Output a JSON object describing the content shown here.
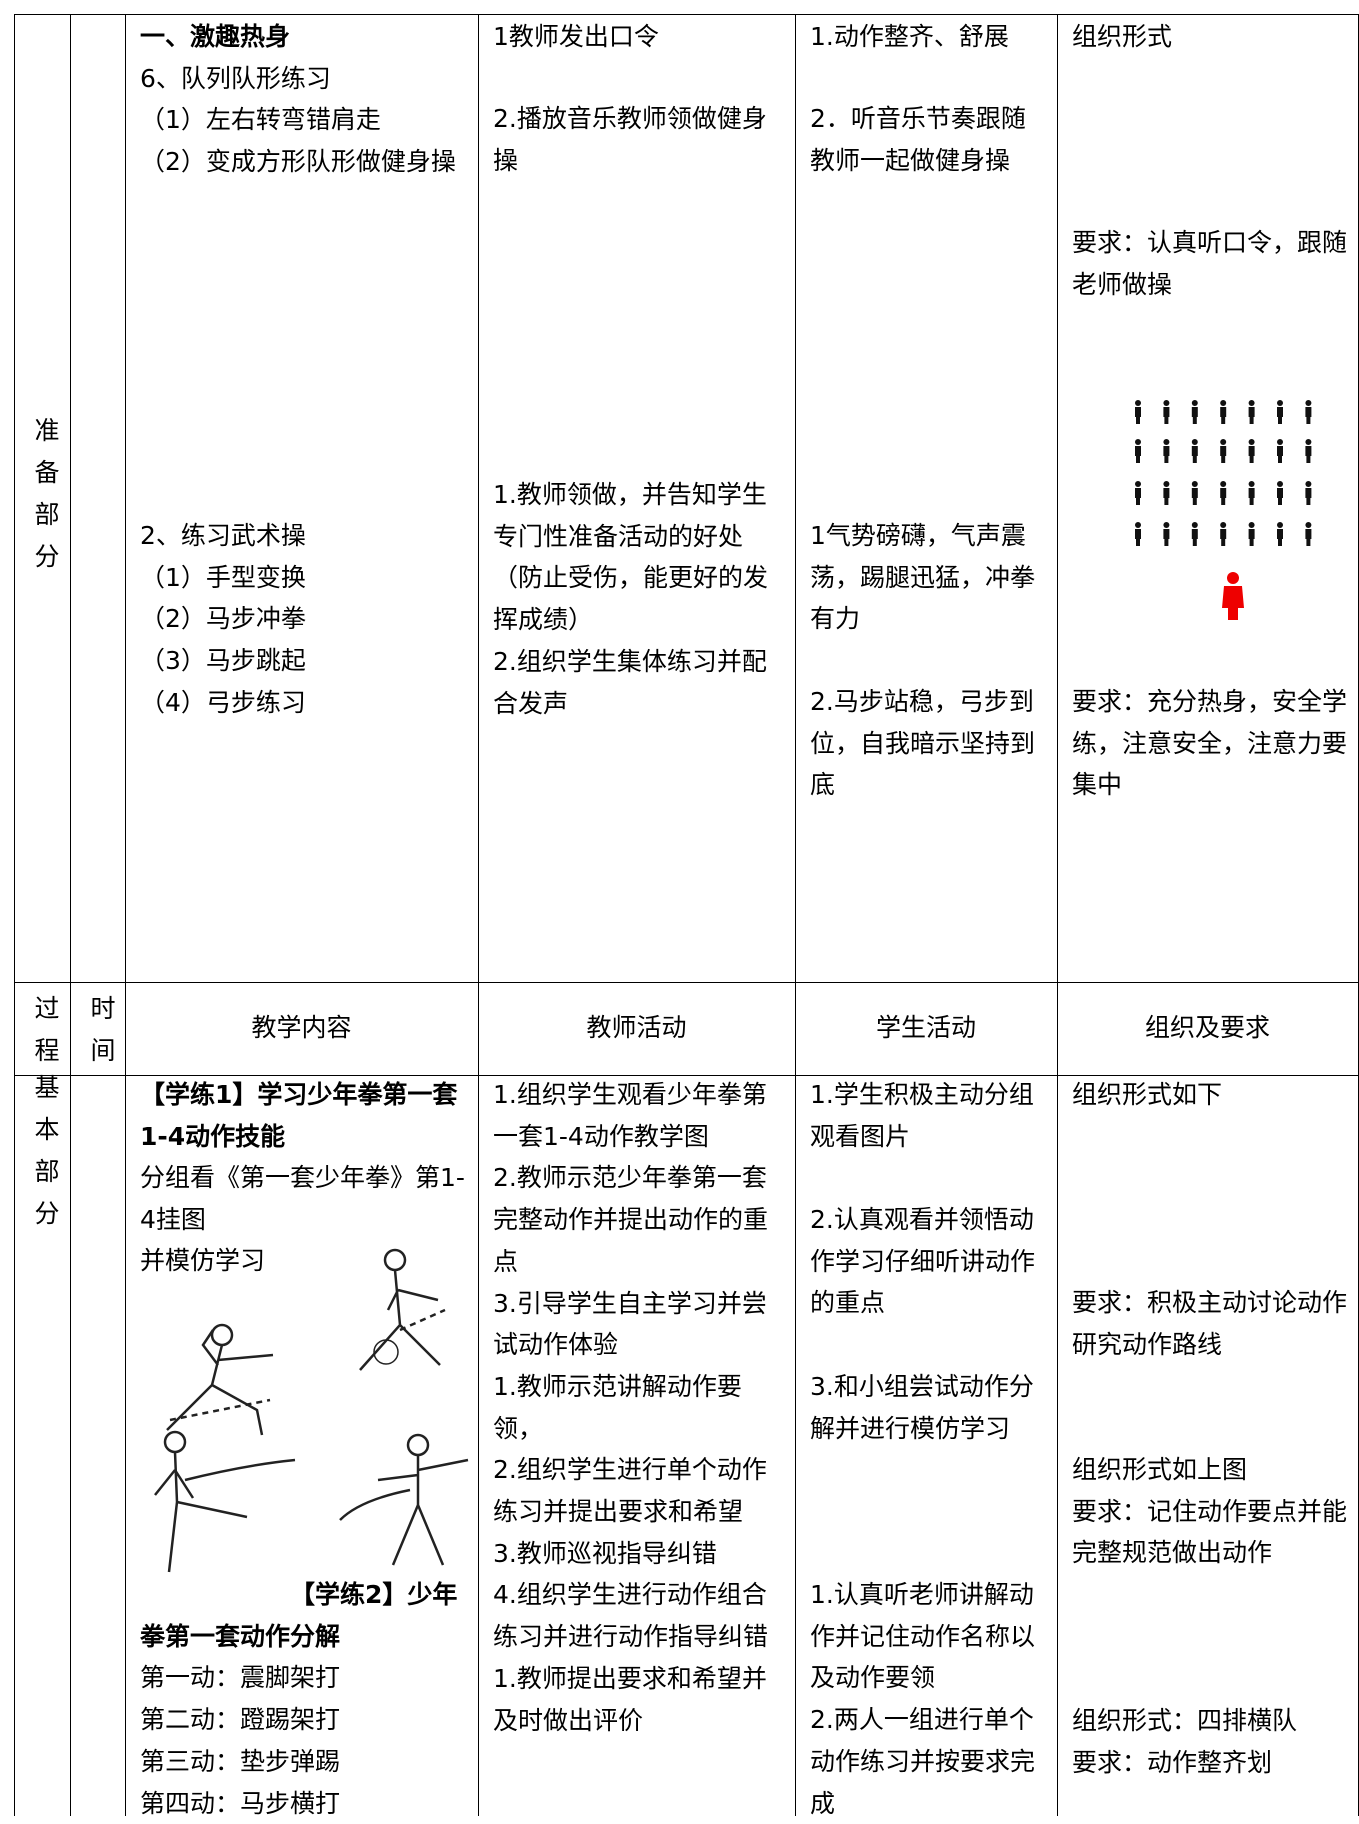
{
  "header": [
    "过程",
    "时间",
    "教学内容",
    "教师活动",
    "学生活动",
    "组织及要求"
  ],
  "sections": [
    {
      "process": "准备部分",
      "content": [
        [
          "一、激趣热身",
          "6、队列队形练习",
          "（1）左右转弯错肩走",
          "（2）变成方形队形做健身操"
        ],
        [
          "2、练习武术操",
          "（1）手型变换",
          "（2）马步冲拳",
          "（3）马步跳起",
          "（4）弓步练习"
        ]
      ],
      "teacher": [
        [
          "1教师发出口令"
        ],
        [
          "2.播放音乐教师领做健身操"
        ],
        [
          "1.教师领做，并告知学生专门性准备活动的好处（防止受伤，能更好的发挥成绩）",
          "2.组织学生集体练习并配合发声"
        ]
      ],
      "student": [
        [
          "1.动作整齐、舒展"
        ],
        [
          "2．听音乐节奏跟随教师一起做健身操"
        ],
        [
          "1气势磅礴，气声震荡，踢腿迅猛，冲拳有力"
        ],
        [
          "2.马步站稳，弓步到位，自我暗示坚持到底"
        ]
      ],
      "organization": [
        [
          "组织形式"
        ],
        [
          "要求：认真听口令，跟随老师做操"
        ],
        [
          "要求：充分热身，安全学练，注意安全，注意力要集中"
        ]
      ]
    },
    {
      "process": "基本部分",
      "content": [
        [
          "【学练1】学习少年拳第一套1-4动作技能"
        ],
        [
          "分组看《第一套少年拳》第1-4挂图",
          "并模仿学习"
        ],
        [
          "【学练2】少年拳第一套动作分解",
          "第一动：震脚架打",
          "第二动：蹬踢架打",
          "第三动：垫步弹踢",
          "第四动：马步横打"
        ]
      ],
      "teacher": [
        [
          "1.组织学生观看少年拳第一套1-4动作教学图",
          "2.教师示范少年拳第一套完整动作并提出动作的重点",
          "3.引导学生自主学习并尝试动作体验",
          "1.教师示范讲解动作要领，",
          "2.组织学生进行单个动作练习并提出要求和希望",
          "3.教师巡视指导纠错",
          "4.组织学生进行动作组合练习并进行动作指导纠错",
          "1.教师提出要求和希望并及时做出评价"
        ]
      ],
      "student": [
        [
          "1.学生积极主动分组观看图片"
        ],
        [
          "2.认真观看并领悟动作学习仔细听讲动作的重点"
        ],
        [
          "3.和小组尝试动作分解并进行模仿学习"
        ],
        [
          "1.认真听老师讲解动作并记住动作名称以及动作要领",
          "2.两人一组进行单个动作练习并按要求完成"
        ]
      ],
      "organization": [
        [
          "组织形式如下"
        ],
        [
          "要求：积极主动讨论动作研究动作路线"
        ],
        [
          "组织形式如上图",
          "要求：记住动作要点并能完整规范做出动作"
        ],
        [
          "组织形式：四排横队",
          "要求：动作整齐划"
        ]
      ]
    }
  ]
}
